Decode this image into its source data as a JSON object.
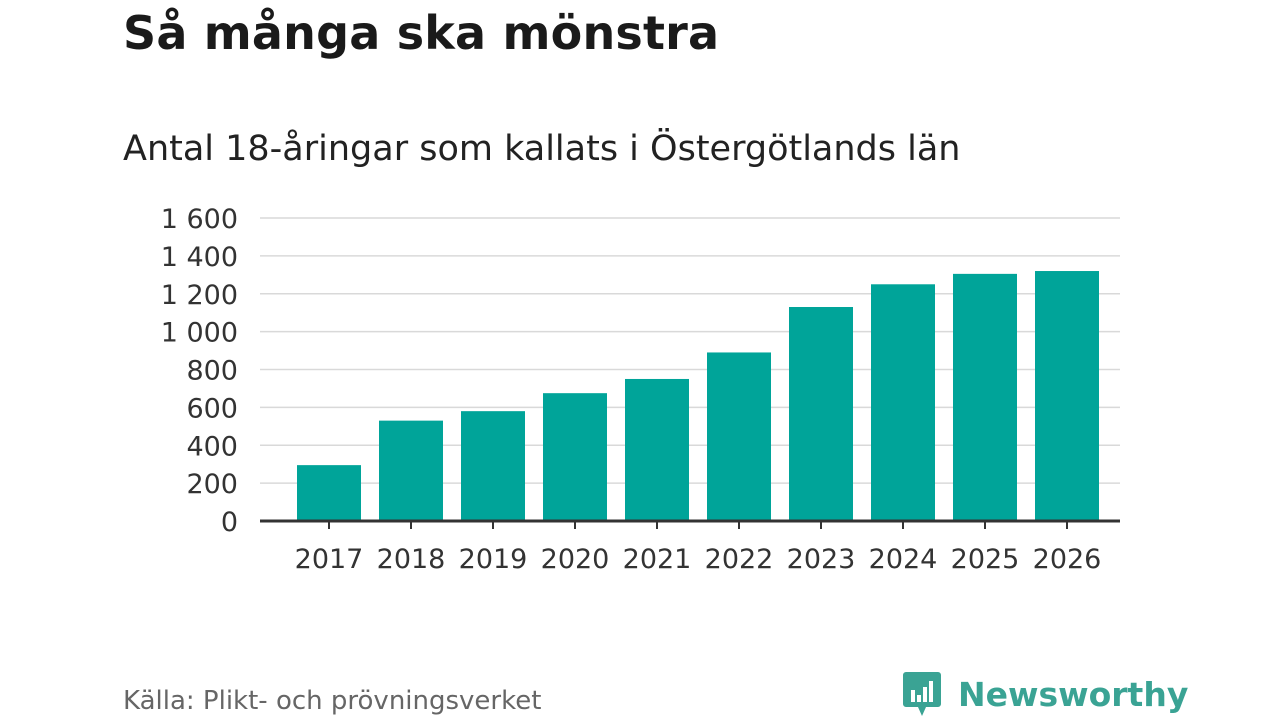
{
  "header": {
    "title": "Så många ska mönstra",
    "subtitle": "Antal 18-åringar som kallats i Östergötlands län"
  },
  "footer": {
    "source": "Källa: Plikt- och prövningsverket",
    "brand": "Newsworthy",
    "brand_icon": "newsworthy-logo-icon"
  },
  "colors": {
    "bar": "#00a499",
    "grid": "#d9d9d9",
    "axis": "#333333",
    "brand": "#3aa394"
  },
  "chart_data": {
    "type": "bar",
    "title": "Antal 18-åringar som kallats i Östergötlands län",
    "xlabel": "",
    "ylabel": "",
    "categories": [
      "2017",
      "2018",
      "2019",
      "2020",
      "2021",
      "2022",
      "2023",
      "2024",
      "2025",
      "2026"
    ],
    "values": [
      295,
      530,
      580,
      675,
      750,
      890,
      1130,
      1250,
      1305,
      1320
    ],
    "ylim": [
      0,
      1600
    ],
    "yticks": [
      0,
      200,
      400,
      600,
      800,
      1000,
      1200,
      1400,
      1600
    ],
    "ytick_labels": [
      "0",
      "200",
      "400",
      "600",
      "800",
      "1 000",
      "1 200",
      "1 400",
      "1 600"
    ],
    "grid": true,
    "legend": "none"
  }
}
